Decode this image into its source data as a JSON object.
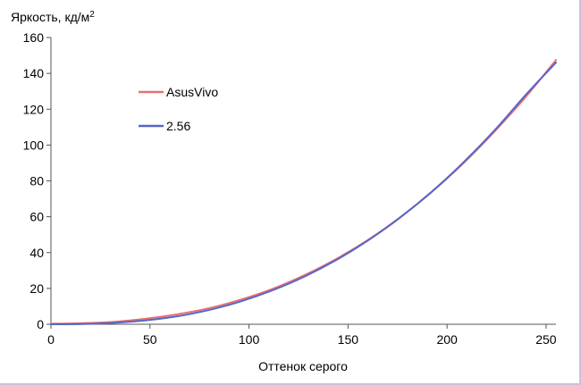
{
  "chart_data": {
    "type": "line",
    "title": "",
    "ylabel": "Яркость, кд/м",
    "ylabel_superscript": "2",
    "xlabel": "Оттенок серого",
    "xlim": [
      0,
      255
    ],
    "ylim": [
      0,
      160
    ],
    "xticks": [
      0,
      50,
      100,
      150,
      200,
      250
    ],
    "yticks": [
      0,
      20,
      40,
      60,
      80,
      100,
      120,
      140,
      160
    ],
    "grid": false,
    "legend_position": "upper-left",
    "series": [
      {
        "name": "AsusVivo",
        "color": "#e8706e",
        "x": [
          0,
          16,
          32,
          48,
          64,
          80,
          96,
          112,
          128,
          144,
          160,
          176,
          192,
          208,
          224,
          240,
          255
        ],
        "y": [
          0.3,
          0.6,
          1.4,
          3.1,
          5.6,
          9.0,
          13.8,
          19.8,
          27.4,
          36.4,
          47.0,
          59.4,
          73.5,
          89.6,
          107.6,
          127.2,
          147.5
        ]
      },
      {
        "name": "2.56",
        "color": "#5566c8",
        "x": [
          0,
          16,
          32,
          48,
          64,
          80,
          96,
          112,
          128,
          144,
          160,
          176,
          192,
          208,
          224,
          240,
          255
        ],
        "y": [
          0,
          0.1,
          0.8,
          2.2,
          4.5,
          8.0,
          12.8,
          19.0,
          26.6,
          35.8,
          46.7,
          59.3,
          73.7,
          90.0,
          108.2,
          128.3,
          146.0
        ]
      }
    ]
  }
}
